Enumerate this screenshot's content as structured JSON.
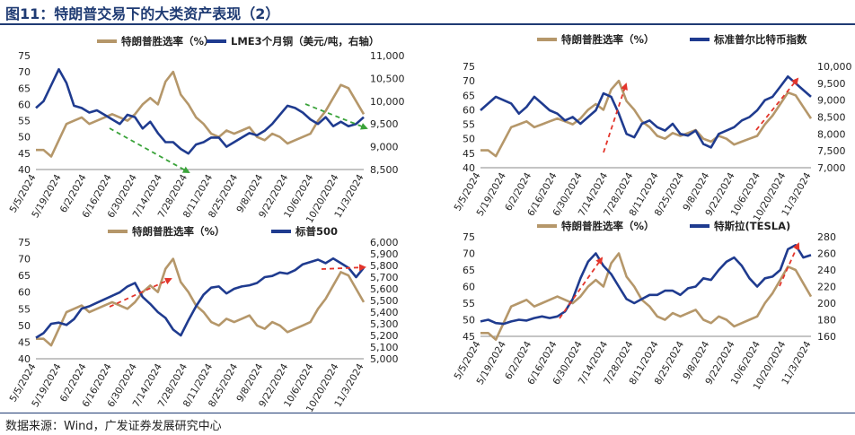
{
  "page": {
    "title": "图11：特朗普交易下的大类资产表现（2）",
    "source": "数据来源：Wind，广发证券发展研究中心"
  },
  "colors": {
    "primary": "#b5976a",
    "secondary": "#1f3b8f",
    "arrow_red": "#e3352b",
    "arrow_green": "#3aa33a",
    "rule": "#1f3b73"
  },
  "chart_data": [
    {
      "type": "line",
      "x_ticks": [
        "5/5/2024",
        "5/19/2024",
        "6/2/2024",
        "6/16/2024",
        "6/30/2024",
        "7/14/2024",
        "7/28/2024",
        "8/11/2024",
        "8/25/2024",
        "9/8/2024",
        "9/22/2024",
        "10/6/2024",
        "10/20/2024",
        "11/3/2024"
      ],
      "y_left": {
        "min": 40,
        "max": 75,
        "ticks": [
          "40",
          "45",
          "50",
          "55",
          "60",
          "65",
          "70",
          "75"
        ]
      },
      "y_right": {
        "min": 8500,
        "max": 11000,
        "ticks": [
          "8,500",
          "9,000",
          "9,500",
          "10,000",
          "10,500",
          "11,000"
        ]
      },
      "series": [
        {
          "name": "特朗普胜选率（%）",
          "axis": "left",
          "color": "#b5976a",
          "values": [
            46,
            46,
            44,
            49,
            54,
            55,
            56,
            54,
            55,
            56,
            57,
            56,
            55,
            57,
            60,
            62,
            60,
            67,
            70,
            63,
            60,
            56,
            54,
            51,
            50,
            52,
            51,
            52,
            53,
            50,
            49,
            51,
            50,
            48,
            49,
            50,
            51,
            55,
            58,
            62,
            66,
            65,
            61,
            57
          ]
        },
        {
          "name": "LME3个月铜（美元/吨，右轴）",
          "axis": "right",
          "color": "#1f3b8f",
          "values": [
            9850,
            10000,
            10350,
            10700,
            10400,
            9900,
            9850,
            9750,
            9800,
            9700,
            9600,
            9500,
            9700,
            9650,
            9400,
            9550,
            9300,
            9100,
            9100,
            8950,
            8850,
            9050,
            9100,
            9200,
            9200,
            9000,
            9100,
            9200,
            9300,
            9250,
            9350,
            9500,
            9700,
            9900,
            9850,
            9750,
            9600,
            9500,
            9650,
            9450,
            9550,
            9450,
            9500,
            9650
          ]
        }
      ]
    },
    {
      "type": "line",
      "x_ticks": [
        "5/5/2024",
        "5/19/2024",
        "6/2/2024",
        "6/16/2024",
        "6/30/2024",
        "7/14/2024",
        "7/28/2024",
        "8/11/2024",
        "8/25/2024",
        "9/8/2024",
        "9/22/2024",
        "10/6/2024",
        "10/20/2024",
        "11/3/2024"
      ],
      "y_left": {
        "min": 40,
        "max": 75,
        "ticks": [
          "40",
          "45",
          "50",
          "55",
          "60",
          "65",
          "70",
          "75"
        ]
      },
      "y_right": {
        "min": 7000,
        "max": 10000,
        "ticks": [
          "7,000",
          "7,500",
          "8,000",
          "8,500",
          "9,000",
          "9,500",
          "10,000"
        ]
      },
      "series": [
        {
          "name": "特朗普胜选率（%）",
          "axis": "left",
          "color": "#b5976a",
          "values": [
            46,
            46,
            44,
            49,
            54,
            55,
            56,
            54,
            55,
            56,
            57,
            56,
            55,
            57,
            60,
            62,
            60,
            67,
            70,
            63,
            60,
            56,
            54,
            51,
            50,
            52,
            51,
            52,
            53,
            50,
            49,
            51,
            50,
            48,
            49,
            50,
            51,
            55,
            58,
            62,
            66,
            65,
            61,
            57
          ]
        },
        {
          "name": "标准普尔比特币指数",
          "axis": "right",
          "color": "#1f3b8f",
          "values": [
            8700,
            8900,
            9100,
            9000,
            8900,
            8600,
            8800,
            9100,
            8900,
            8700,
            8600,
            8400,
            8500,
            8300,
            8500,
            8700,
            9200,
            9100,
            8600,
            8000,
            7900,
            8300,
            8400,
            8200,
            8100,
            8300,
            8000,
            7950,
            8100,
            7700,
            7600,
            8000,
            8100,
            8200,
            8400,
            8500,
            8700,
            9000,
            9100,
            9400,
            9700,
            9500,
            9300,
            9100
          ]
        }
      ]
    },
    {
      "type": "line",
      "x_ticks": [
        "5/5/2024",
        "5/19/2024",
        "6/2/2024",
        "6/16/2024",
        "6/30/2024",
        "7/14/2024",
        "7/28/2024",
        "8/11/2024",
        "8/25/2024",
        "9/8/2024",
        "9/22/2024",
        "10/6/2024",
        "10/20/2024",
        "11/3/2024"
      ],
      "y_left": {
        "min": 40,
        "max": 75,
        "ticks": [
          "40",
          "45",
          "50",
          "55",
          "60",
          "65",
          "70",
          "75"
        ]
      },
      "y_right": {
        "min": 5000,
        "max": 6000,
        "ticks": [
          "5,000",
          "5,100",
          "5,200",
          "5,300",
          "5,400",
          "5,500",
          "5,600",
          "5,700",
          "5,800",
          "5,900",
          "6,000"
        ]
      },
      "series": [
        {
          "name": "特朗普胜选率（%）",
          "axis": "left",
          "color": "#b5976a",
          "values": [
            46,
            46,
            44,
            49,
            54,
            55,
            56,
            54,
            55,
            56,
            57,
            56,
            55,
            57,
            60,
            62,
            60,
            67,
            70,
            63,
            60,
            56,
            54,
            51,
            50,
            52,
            51,
            52,
            53,
            50,
            49,
            51,
            50,
            48,
            49,
            50,
            51,
            55,
            58,
            62,
            66,
            65,
            61,
            57
          ]
        },
        {
          "name": "标普500",
          "axis": "right",
          "color": "#1f3b8f",
          "values": [
            5180,
            5220,
            5300,
            5310,
            5290,
            5340,
            5430,
            5450,
            5480,
            5510,
            5540,
            5570,
            5620,
            5650,
            5530,
            5470,
            5400,
            5350,
            5250,
            5200,
            5330,
            5450,
            5550,
            5610,
            5620,
            5560,
            5600,
            5620,
            5630,
            5650,
            5700,
            5710,
            5740,
            5730,
            5760,
            5810,
            5830,
            5850,
            5820,
            5860,
            5820,
            5780,
            5700,
            5780
          ]
        }
      ]
    },
    {
      "type": "line",
      "x_ticks": [
        "5/5/2024",
        "5/19/2024",
        "6/2/2024",
        "6/16/2024",
        "6/30/2024",
        "7/14/2024",
        "7/28/2024",
        "8/11/2024",
        "8/25/2024",
        "9/8/2024",
        "9/22/2024",
        "10/6/2024",
        "10/20/2024",
        "11/3/2024"
      ],
      "y_left": {
        "min": 45,
        "max": 75,
        "ticks": [
          "45",
          "50",
          "55",
          "60",
          "65",
          "70",
          "75"
        ]
      },
      "y_right": {
        "min": 160,
        "max": 280,
        "ticks": [
          "160",
          "180",
          "200",
          "220",
          "240",
          "260",
          "280"
        ]
      },
      "series": [
        {
          "name": "特朗普胜选率（%）",
          "axis": "left",
          "color": "#b5976a",
          "values": [
            46,
            46,
            44,
            49,
            54,
            55,
            56,
            54,
            55,
            56,
            57,
            56,
            55,
            57,
            60,
            62,
            60,
            67,
            70,
            63,
            60,
            56,
            54,
            51,
            50,
            52,
            51,
            52,
            53,
            50,
            49,
            51,
            50,
            48,
            49,
            50,
            51,
            55,
            58,
            62,
            66,
            65,
            61,
            57
          ]
        },
        {
          "name": "特斯拉(TESLA)",
          "axis": "right",
          "color": "#1f3b8f",
          "values": [
            178,
            180,
            176,
            175,
            178,
            180,
            179,
            182,
            184,
            182,
            184,
            190,
            205,
            230,
            250,
            260,
            245,
            235,
            220,
            205,
            200,
            205,
            210,
            210,
            215,
            215,
            210,
            218,
            220,
            230,
            228,
            240,
            250,
            255,
            245,
            230,
            220,
            230,
            232,
            240,
            265,
            270,
            255,
            258
          ]
        }
      ]
    }
  ]
}
